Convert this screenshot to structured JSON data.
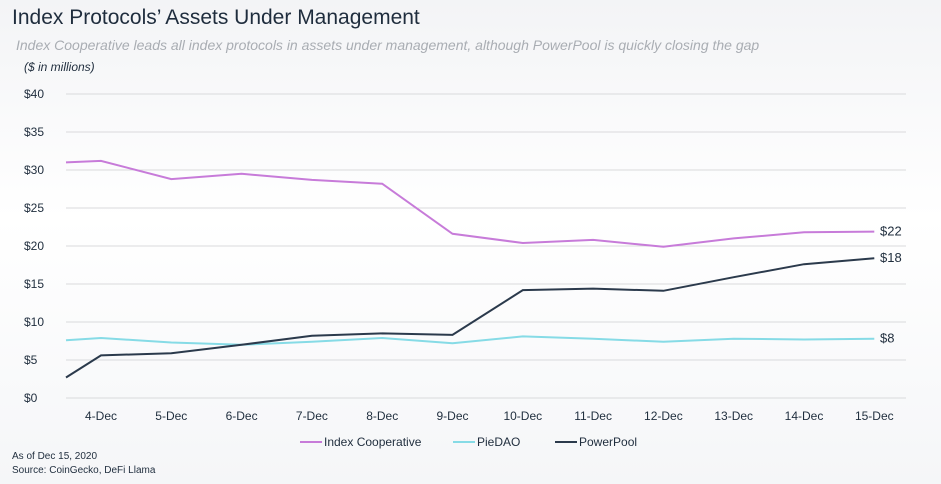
{
  "header": {
    "title": "Index Protocols’ Assets Under Management",
    "subtitle": "Index Cooperative leads all index protocols in assets under management, although PowerPool is quickly closing the gap",
    "units": "($ in millions)"
  },
  "footer": {
    "as_of": "As of Dec 15, 2020",
    "source": "Source: CoinGecko, DeFi Llama"
  },
  "chart_data": {
    "type": "line",
    "categories": [
      "4-Dec",
      "5-Dec",
      "6-Dec",
      "7-Dec",
      "8-Dec",
      "9-Dec",
      "10-Dec",
      "11-Dec",
      "12-Dec",
      "13-Dec",
      "14-Dec",
      "15-Dec"
    ],
    "ylim": [
      0,
      40
    ],
    "yticks": [
      0,
      5,
      10,
      15,
      20,
      25,
      30,
      35,
      40
    ],
    "ytick_labels": [
      "$0",
      "$5",
      "$10",
      "$15",
      "$20",
      "$25",
      "$30",
      "$35",
      "$40"
    ],
    "grid": true,
    "legend_position": "bottom",
    "series": [
      {
        "name": "Index Cooperative",
        "color": "#c77bd9",
        "start": [
          31.0,
          31.2
        ],
        "values": [
          31.2,
          28.8,
          29.5,
          28.7,
          28.2,
          21.6,
          20.4,
          20.8,
          19.9,
          21.0,
          21.8,
          21.9
        ],
        "end_label": "$22"
      },
      {
        "name": "PieDAO",
        "color": "#86dbe6",
        "start": [
          7.6,
          7.9
        ],
        "values": [
          7.9,
          7.3,
          7.0,
          7.4,
          7.9,
          7.2,
          8.1,
          7.8,
          7.4,
          7.8,
          7.7,
          7.8
        ],
        "end_label": "$8"
      },
      {
        "name": "PowerPool",
        "color": "#2b3a4c",
        "start": [
          2.7,
          5.6
        ],
        "values": [
          5.6,
          5.9,
          7.0,
          8.2,
          8.5,
          8.3,
          14.2,
          14.4,
          14.1,
          15.9,
          17.6,
          18.4
        ],
        "end_label": "$18"
      }
    ]
  }
}
